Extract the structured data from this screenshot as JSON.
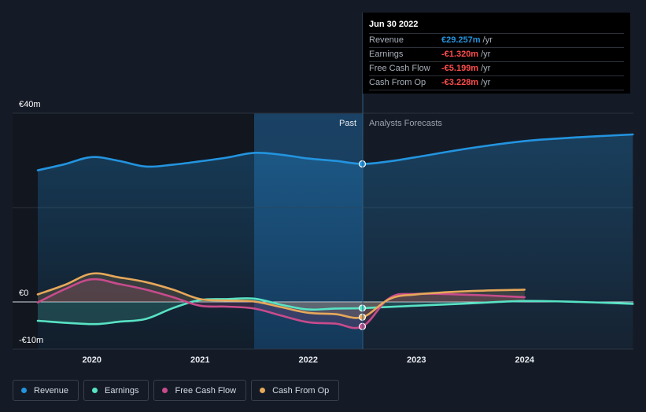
{
  "tooltip": {
    "date": "Jun 30 2022",
    "rows": [
      {
        "label": "Revenue",
        "value": "€29.257m",
        "unit": "/yr",
        "color": "#2394df"
      },
      {
        "label": "Earnings",
        "value": "-€1.320m",
        "unit": "/yr",
        "color": "#ff4d4d"
      },
      {
        "label": "Free Cash Flow",
        "value": "-€5.199m",
        "unit": "/yr",
        "color": "#ff4d4d"
      },
      {
        "label": "Cash From Op",
        "value": "-€3.228m",
        "unit": "/yr",
        "color": "#ff4d4d"
      }
    ]
  },
  "regions": {
    "past": "Past",
    "forecast": "Analysts Forecasts"
  },
  "legend": [
    {
      "label": "Revenue",
      "color": "#2394df"
    },
    {
      "label": "Earnings",
      "color": "#58e3c4"
    },
    {
      "label": "Free Cash Flow",
      "color": "#c84b8c"
    },
    {
      "label": "Cash From Op",
      "color": "#e6a85a"
    }
  ],
  "chart_data": {
    "type": "line",
    "title": "",
    "xlabel": "",
    "ylabel": "",
    "x_ticks": [
      "2020",
      "2021",
      "2022",
      "2023",
      "2024"
    ],
    "y_ticks": [
      {
        "value": 40,
        "label": "€40m"
      },
      {
        "value": 0,
        "label": "€0"
      },
      {
        "value": -10,
        "label": "-€10m"
      }
    ],
    "xlim": [
      2019.5,
      2025.0
    ],
    "ylim": [
      -10,
      40
    ],
    "past_region_start": 2021.5,
    "forecast_start": 2022.5,
    "grid": true,
    "legend_position": "bottom-left",
    "series": [
      {
        "name": "Revenue",
        "color": "#2394df",
        "points": [
          [
            2019.5,
            27.9
          ],
          [
            2019.75,
            29.2
          ],
          [
            2020.0,
            30.7
          ],
          [
            2020.25,
            29.9
          ],
          [
            2020.5,
            28.7
          ],
          [
            2020.75,
            29.1
          ],
          [
            2021.0,
            29.8
          ],
          [
            2021.25,
            30.6
          ],
          [
            2021.5,
            31.6
          ],
          [
            2021.75,
            31.2
          ],
          [
            2022.0,
            30.4
          ],
          [
            2022.25,
            29.9
          ],
          [
            2022.5,
            29.257
          ],
          [
            2022.75,
            29.8
          ],
          [
            2023.0,
            30.7
          ],
          [
            2023.5,
            32.6
          ],
          [
            2024.0,
            34.1
          ],
          [
            2024.5,
            34.9
          ],
          [
            2025.0,
            35.5
          ]
        ],
        "marker_x": 2022.5
      },
      {
        "name": "Earnings",
        "color": "#58e3c4",
        "points": [
          [
            2019.5,
            -4.0
          ],
          [
            2020.0,
            -4.7
          ],
          [
            2020.25,
            -4.2
          ],
          [
            2020.5,
            -3.6
          ],
          [
            2020.75,
            -1.3
          ],
          [
            2021.0,
            0.4
          ],
          [
            2021.25,
            0.6
          ],
          [
            2021.5,
            0.7
          ],
          [
            2021.75,
            -0.6
          ],
          [
            2022.0,
            -1.6
          ],
          [
            2022.25,
            -1.4
          ],
          [
            2022.5,
            -1.32
          ],
          [
            2023.0,
            -0.8
          ],
          [
            2023.5,
            -0.3
          ],
          [
            2024.0,
            0.2
          ],
          [
            2024.5,
            0.0
          ],
          [
            2025.0,
            -0.4
          ]
        ],
        "marker_x": 2022.5
      },
      {
        "name": "Free Cash Flow",
        "color": "#c84b8c",
        "points": [
          [
            2019.5,
            -0.1
          ],
          [
            2019.75,
            2.7
          ],
          [
            2020.0,
            4.8
          ],
          [
            2020.25,
            3.8
          ],
          [
            2020.5,
            2.6
          ],
          [
            2020.75,
            1.0
          ],
          [
            2021.0,
            -0.8
          ],
          [
            2021.25,
            -1.0
          ],
          [
            2021.5,
            -1.4
          ],
          [
            2021.75,
            -2.9
          ],
          [
            2022.0,
            -4.3
          ],
          [
            2022.25,
            -4.6
          ],
          [
            2022.5,
            -5.199
          ],
          [
            2022.75,
            0.8
          ],
          [
            2023.0,
            1.7
          ],
          [
            2023.5,
            1.5
          ],
          [
            2024.0,
            1.0
          ]
        ],
        "marker_x": 2022.5
      },
      {
        "name": "Cash From Op",
        "color": "#e6a85a",
        "points": [
          [
            2019.5,
            1.6
          ],
          [
            2019.75,
            3.6
          ],
          [
            2020.0,
            6.0
          ],
          [
            2020.25,
            5.2
          ],
          [
            2020.5,
            4.2
          ],
          [
            2020.75,
            2.6
          ],
          [
            2021.0,
            0.6
          ],
          [
            2021.25,
            0.3
          ],
          [
            2021.5,
            0.1
          ],
          [
            2021.75,
            -1.1
          ],
          [
            2022.0,
            -2.3
          ],
          [
            2022.25,
            -2.6
          ],
          [
            2022.5,
            -3.228
          ],
          [
            2022.75,
            0.6
          ],
          [
            2023.0,
            1.6
          ],
          [
            2023.5,
            2.3
          ],
          [
            2024.0,
            2.6
          ]
        ],
        "marker_x": 2022.5
      }
    ]
  }
}
